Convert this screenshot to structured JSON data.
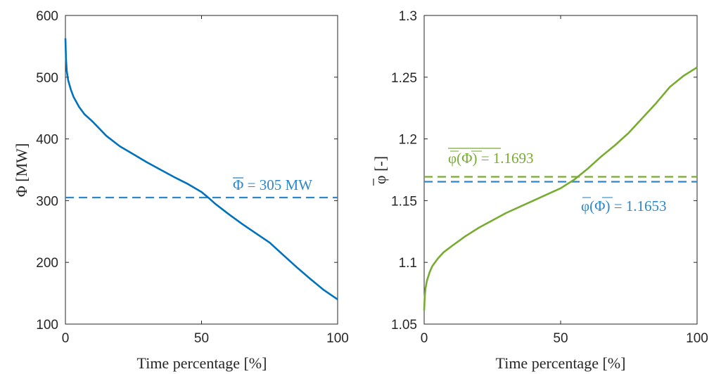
{
  "colors": {
    "blue": "#0072BD",
    "blue_dashed": "#2D87C8",
    "green": "#77AC30",
    "axis": "#262626"
  },
  "chart_data": [
    {
      "type": "line",
      "xlabel": "Time percentage [%]",
      "ylabel": "Φ [MW]",
      "xlim": [
        0,
        100
      ],
      "ylim": [
        100,
        600
      ],
      "xticks": [
        "0",
        "50",
        "100"
      ],
      "yticks": [
        "100",
        "200",
        "300",
        "400",
        "500",
        "600"
      ],
      "grid": false,
      "series": [
        {
          "color": "#0072BD",
          "x": [
            0,
            0.2,
            0.5,
            1,
            2,
            3,
            5,
            7,
            10,
            15,
            20,
            25,
            30,
            35,
            40,
            45,
            50,
            53,
            55,
            60,
            65,
            70,
            75,
            80,
            85,
            90,
            95,
            100
          ],
          "y": [
            563,
            530,
            510,
            495,
            480,
            468,
            452,
            440,
            428,
            405,
            388,
            375,
            362,
            350,
            338,
            327,
            314,
            303,
            295,
            278,
            262,
            247,
            232,
            212,
            192,
            173,
            155,
            140
          ]
        }
      ],
      "hlines": [
        {
          "y": 305,
          "style": "dashed",
          "color": "#2D87C8"
        }
      ],
      "annotations": [
        {
          "bar_symbol": "Φ",
          "text": " = 305 MW",
          "color": "#2D87C8"
        }
      ]
    },
    {
      "type": "line",
      "xlabel": "Time percentage [%]",
      "ylabel": "φ [-]",
      "xlim": [
        0,
        100
      ],
      "ylim": [
        1.05,
        1.3
      ],
      "xticks": [
        "0",
        "50",
        "100"
      ],
      "yticks": [
        "1.05",
        "1.1",
        "1.15",
        "1.2",
        "1.25",
        "1.3"
      ],
      "grid": false,
      "series": [
        {
          "color": "#77AC30",
          "x": [
            0,
            0.2,
            0.5,
            1,
            2,
            3,
            5,
            7,
            10,
            15,
            20,
            25,
            30,
            35,
            40,
            45,
            50,
            55,
            60,
            65,
            70,
            75,
            80,
            85,
            90,
            95,
            100
          ],
          "y": [
            1.061,
            1.072,
            1.079,
            1.085,
            1.092,
            1.097,
            1.103,
            1.108,
            1.113,
            1.121,
            1.128,
            1.134,
            1.14,
            1.145,
            1.15,
            1.155,
            1.16,
            1.167,
            1.176,
            1.186,
            1.195,
            1.205,
            1.217,
            1.229,
            1.242,
            1.251,
            1.258
          ]
        }
      ],
      "hlines": [
        {
          "y": 1.1693,
          "style": "dashed",
          "color": "#77AC30"
        },
        {
          "y": 1.1653,
          "style": "dashed",
          "color": "#2D87C8"
        }
      ],
      "annotations": [
        {
          "overlined": "φ(Φ)",
          "text": " = 1.1693",
          "color": "#77AC30"
        },
        {
          "text_prefix": "φ(Φ)",
          "text": " = 1.1653",
          "color": "#2D87C8"
        }
      ]
    }
  ]
}
